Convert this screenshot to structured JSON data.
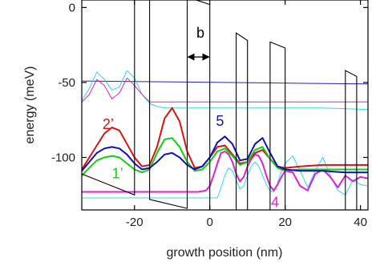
{
  "chart_data": {
    "type": "line",
    "xlabel": "growth position (nm)",
    "ylabel": "energy (meV)",
    "xlim": [
      -34,
      42
    ],
    "ylim": [
      -135,
      5
    ],
    "xticks": [
      -20,
      0,
      20,
      40
    ],
    "yticks": [
      0,
      -50,
      -100
    ],
    "xtick_labels": [
      "-20",
      "0",
      "20",
      "40"
    ],
    "ytick_labels": [
      "0",
      "-50",
      "-100"
    ],
    "grid": false,
    "legend": "none",
    "colors": {
      "band": "#000000",
      "level_blue": "#2020c8",
      "level_magenta": "#e020d0",
      "level_cyan": "#30d8e8",
      "state_red": "#e01010",
      "state_green": "#10d010",
      "state_blue": "#1010c0",
      "state_magenta": "#e020d0"
    },
    "annotations": [
      {
        "text": "2’",
        "x": -27,
        "y": -81,
        "color": "#e01010"
      },
      {
        "text": "1’",
        "x": -24.5,
        "y": -114,
        "color": "#10d010"
      },
      {
        "text": "5",
        "x": 2.7,
        "y": -79,
        "color": "#1010c0"
      },
      {
        "text": "4",
        "x": 17.3,
        "y": -133,
        "color": "#e020d0"
      },
      {
        "text": "b",
        "x": -2.5,
        "y": -20,
        "color": "#000000"
      }
    ],
    "dimension_arrow": {
      "x_from": -6,
      "x_to": 0,
      "y": -33
    },
    "band_profile": [
      [
        -34,
        -111
      ],
      [
        -20,
        -125
      ],
      [
        -20,
        13
      ],
      [
        -16,
        13
      ],
      [
        -16,
        -128
      ],
      [
        -6,
        -134
      ],
      [
        -6,
        7
      ],
      [
        0,
        2
      ],
      [
        0,
        -135
      ],
      [
        7,
        -135
      ],
      [
        7,
        -17
      ],
      [
        10,
        -22
      ],
      [
        10,
        -135
      ],
      [
        16,
        -135
      ],
      [
        16,
        -23
      ],
      [
        20,
        -27
      ],
      [
        20,
        -135
      ],
      [
        36,
        -135
      ],
      [
        36,
        -42
      ],
      [
        39,
        -46
      ],
      [
        39,
        -135
      ],
      [
        42,
        -135
      ]
    ],
    "series": [
      {
        "color": "#2020c8",
        "x": [
          -34,
          42
        ],
        "y": [
          -49,
          -51
        ]
      },
      {
        "color": "#30d8e8",
        "x": [
          -34,
          -32,
          -30,
          -28,
          -26,
          -24,
          -22,
          -20,
          -18,
          -16,
          -14,
          -12,
          -10,
          -8,
          -6,
          -4,
          0,
          10,
          20,
          30,
          42
        ],
        "y": [
          -62,
          -54,
          -43,
          -48,
          -55,
          -53,
          -42,
          -47,
          -58,
          -64,
          -66,
          -67,
          -67,
          -67,
          -67,
          -67,
          -67,
          -67,
          -67,
          -67,
          -68
        ]
      },
      {
        "color": "#e020d0",
        "x": [
          -34,
          -32,
          -30,
          -28,
          -26,
          -24,
          -22,
          -20,
          -18,
          -16,
          -14,
          -12,
          -10,
          -8,
          -4,
          0,
          10,
          20,
          30,
          42
        ],
        "y": [
          -63,
          -58,
          -48,
          -52,
          -61,
          -57,
          -47,
          -52,
          -58,
          -63,
          -63,
          -63,
          -63,
          -63,
          -63,
          -63,
          -63,
          -63,
          -63,
          -63
        ]
      },
      {
        "color": "#30d8e8",
        "x": [
          -34,
          -20,
          -18,
          -16,
          -6,
          -4,
          0,
          2,
          3,
          4,
          5,
          6,
          7,
          8,
          9,
          10,
          11,
          12,
          13,
          14,
          15,
          16,
          17,
          18,
          19,
          20,
          22,
          24,
          26,
          28,
          30,
          32,
          34,
          36,
          38,
          40,
          42
        ],
        "y": [
          -127,
          -127,
          -127,
          -127,
          -127,
          -127,
          -127,
          -127,
          -120,
          -112,
          -107,
          -109,
          -115,
          -121,
          -119,
          -112,
          -106,
          -103,
          -106,
          -112,
          -118,
          -122,
          -123,
          -117,
          -109,
          -104,
          -99,
          -109,
          -120,
          -109,
          -100,
          -112,
          -122,
          -125,
          -115,
          -118,
          -119
        ]
      },
      {
        "color": "#e020d0",
        "x": [
          -34,
          -20,
          -16,
          -6,
          -3,
          -1,
          0,
          1,
          2,
          3,
          4,
          5,
          6,
          7,
          8,
          9,
          10,
          11,
          12,
          13,
          14,
          15,
          16,
          17,
          18,
          19,
          20,
          22,
          24,
          26,
          28,
          30,
          32,
          34,
          36,
          38,
          40,
          42
        ],
        "y": [
          -123,
          -123,
          -123,
          -123,
          -123,
          -122,
          -119,
          -112,
          -104,
          -97,
          -96,
          -98,
          -103,
          -111,
          -116,
          -113,
          -106,
          -101,
          -98,
          -99,
          -104,
          -112,
          -119,
          -122,
          -118,
          -113,
          -109,
          -110,
          -119,
          -122,
          -111,
          -108,
          -113,
          -120,
          -112,
          -116,
          -113,
          -114
        ]
      },
      {
        "color": "#e01010",
        "x": [
          -34,
          -32,
          -30,
          -28,
          -26,
          -24,
          -22,
          -20,
          -18,
          -16,
          -14,
          -12,
          -10,
          -8,
          -6,
          -4,
          -2,
          0,
          2,
          4,
          6,
          8,
          10,
          12,
          14,
          16,
          18,
          20,
          24,
          30,
          36,
          42
        ],
        "y": [
          -108,
          -100,
          -92,
          -84,
          -80,
          -82,
          -91,
          -100,
          -106,
          -105,
          -93,
          -74,
          -67,
          -76,
          -96,
          -107,
          -106,
          -100,
          -93,
          -92,
          -98,
          -104,
          -103,
          -97,
          -95,
          -101,
          -106,
          -107,
          -106,
          -105,
          -105,
          -105
        ]
      },
      {
        "color": "#10d010",
        "x": [
          -34,
          -32,
          -30,
          -28,
          -26,
          -24,
          -22,
          -20,
          -18,
          -16,
          -14,
          -12,
          -10,
          -8,
          -6,
          -4,
          -2,
          0,
          2,
          4,
          6,
          8,
          10,
          12,
          14,
          16,
          18,
          20,
          24,
          30,
          36,
          42
        ],
        "y": [
          -112,
          -107,
          -102,
          -100,
          -99,
          -100,
          -104,
          -108,
          -110,
          -108,
          -97,
          -88,
          -87,
          -93,
          -103,
          -109,
          -108,
          -103,
          -96,
          -94,
          -99,
          -105,
          -103,
          -95,
          -93,
          -101,
          -107,
          -109,
          -108,
          -108,
          -108,
          -108
        ]
      },
      {
        "color": "#1010c0",
        "x": [
          -34,
          -32,
          -30,
          -28,
          -26,
          -24,
          -22,
          -20,
          -18,
          -16,
          -14,
          -12,
          -10,
          -8,
          -6,
          -4,
          -2,
          0,
          2,
          4,
          6,
          8,
          10,
          12,
          14,
          16,
          18,
          20,
          24,
          30,
          36,
          42
        ],
        "y": [
          -109,
          -103,
          -97,
          -94,
          -93,
          -94,
          -98,
          -104,
          -108,
          -107,
          -103,
          -98,
          -97,
          -100,
          -105,
          -108,
          -106,
          -100,
          -90,
          -86,
          -91,
          -102,
          -101,
          -91,
          -87,
          -97,
          -106,
          -108,
          -109,
          -109,
          -110,
          -110
        ]
      }
    ]
  }
}
